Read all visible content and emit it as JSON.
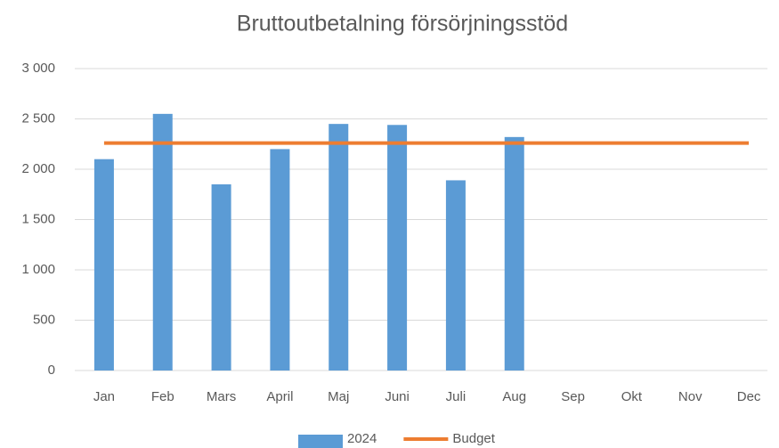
{
  "chart_data": {
    "type": "bar",
    "title": "Bruttoutbetalning försörjningsstöd",
    "categories": [
      "Jan",
      "Feb",
      "Mars",
      "April",
      "Maj",
      "Juni",
      "Juli",
      "Aug",
      "Sep",
      "Okt",
      "Nov",
      "Dec"
    ],
    "series": [
      {
        "name": "2024",
        "type": "bar",
        "color": "#5b9bd5",
        "values": [
          2100,
          2550,
          1850,
          2200,
          2450,
          2440,
          1890,
          2320,
          null,
          null,
          null,
          null
        ]
      },
      {
        "name": "Budget",
        "type": "line",
        "color": "#ed7d31",
        "values": [
          2260,
          2260,
          2260,
          2260,
          2260,
          2260,
          2260,
          2260,
          2260,
          2260,
          2260,
          2260
        ]
      }
    ],
    "ylim": [
      0,
      3000
    ],
    "yticks": [
      0,
      500,
      {
        "value": 1000,
        "label": "1 000"
      },
      {
        "value": 1500,
        "label": "1 500"
      },
      {
        "value": 2000,
        "label": "2 000"
      },
      {
        "value": 2500,
        "label": "2 500"
      },
      {
        "value": 3000,
        "label": "3 000"
      }
    ],
    "grid": true,
    "legend": "bottom"
  }
}
